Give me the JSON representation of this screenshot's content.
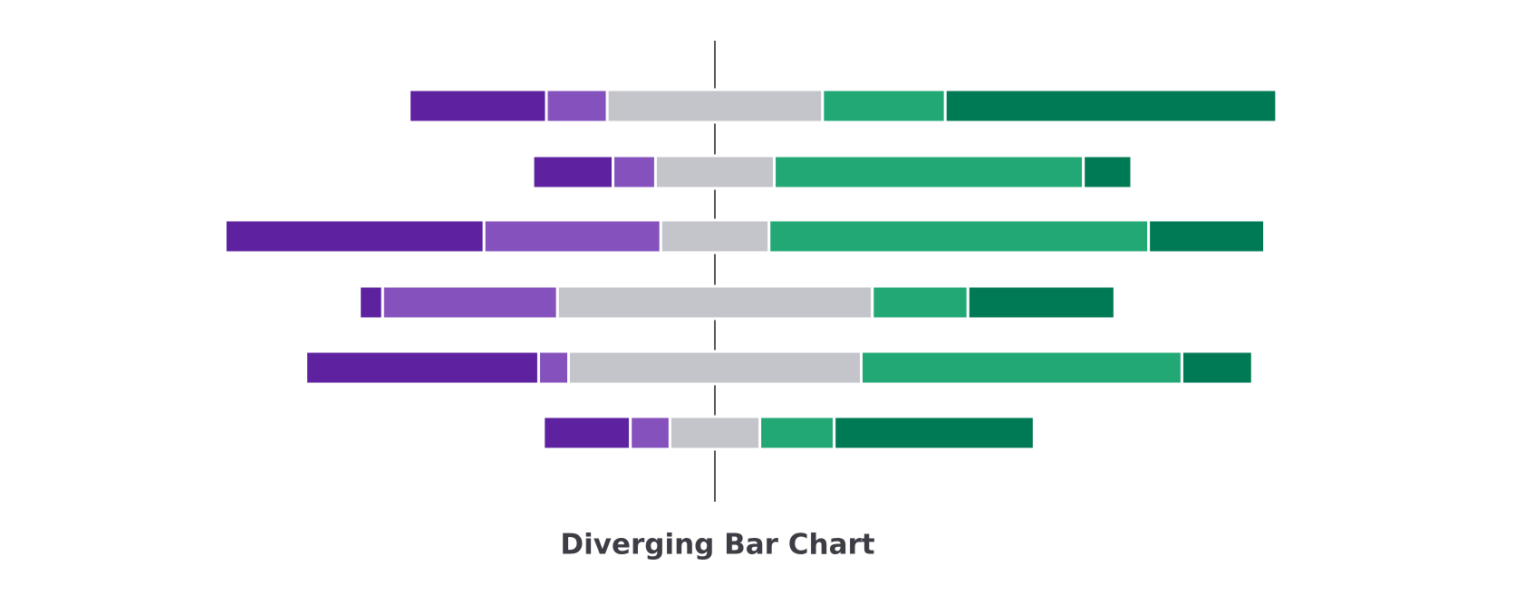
{
  "chart_data": {
    "type": "diverging_bar",
    "title": "Diverging Bar Chart",
    "xlim": [
      -60,
      60
    ],
    "series": [
      {
        "color": "#5e22a0",
        "values": [
          14.2,
          8.3,
          26.8,
          2.4,
          24.1,
          9.0
        ]
      },
      {
        "color": "#8451bd",
        "values": [
          6.3,
          4.4,
          18.3,
          18.1,
          3.1,
          4.1
        ]
      },
      {
        "color": "#c3c5cb",
        "values": [
          22.3,
          12.3,
          11.2,
          32.6,
          30.3,
          9.3
        ]
      },
      {
        "color": "#22a874",
        "values": [
          12.7,
          32.0,
          39.3,
          9.9,
          33.2,
          7.7
        ]
      },
      {
        "color": "#007a55",
        "values": [
          34.3,
          5.0,
          12.0,
          15.2,
          7.3,
          20.7
        ]
      }
    ]
  }
}
